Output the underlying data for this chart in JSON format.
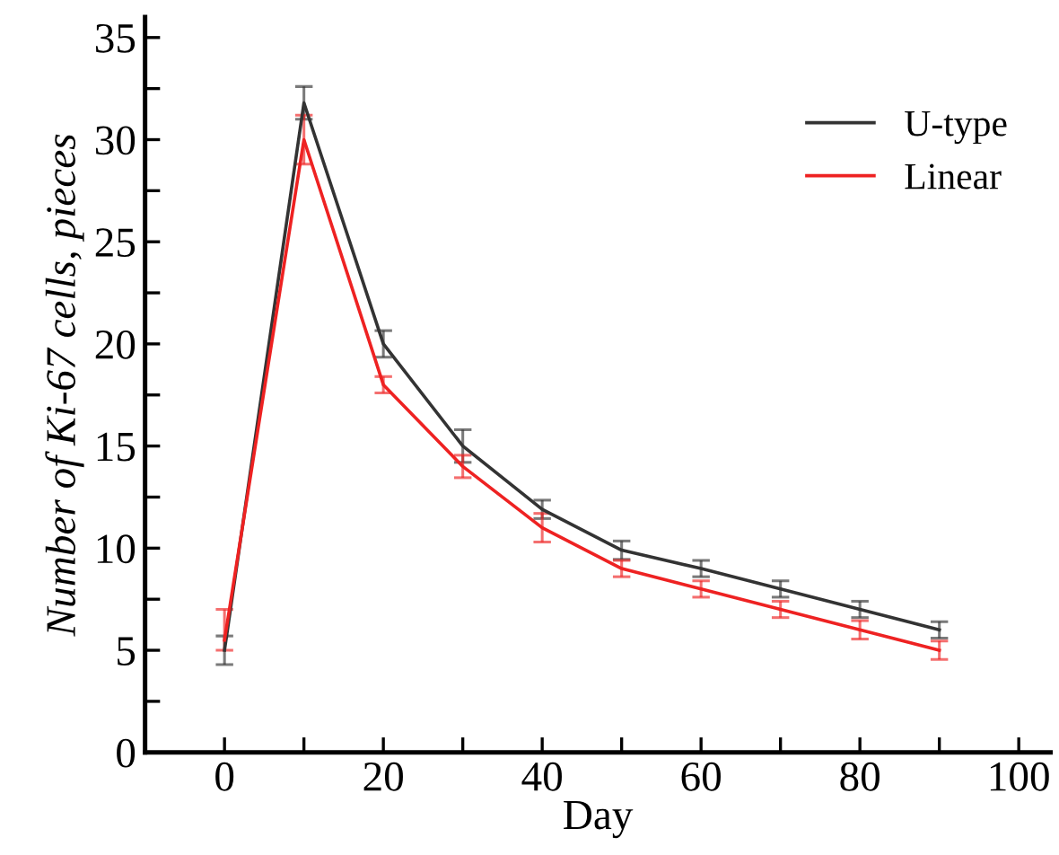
{
  "chart_data": {
    "type": "line",
    "xlabel": "Day",
    "ylabel": "Number of Ki-67 cells, pieces",
    "x": [
      0,
      10,
      20,
      30,
      40,
      50,
      60,
      70,
      80,
      90
    ],
    "series": [
      {
        "name": "U-type",
        "color": "#333333",
        "values": [
          5.0,
          31.8,
          20,
          15.0,
          11.9,
          9.9,
          9.0,
          8.0,
          7.0,
          6.0
        ],
        "errors": [
          0.7,
          0.8,
          0.65,
          0.8,
          0.45,
          0.45,
          0.4,
          0.4,
          0.4,
          0.4
        ]
      },
      {
        "name": "Linear",
        "color": "#ee2222",
        "values": [
          5.5,
          30,
          18,
          14.0,
          11.0,
          9.0,
          8.0,
          7.0,
          6.0,
          5.0
        ],
        "errors": [
          [
            5.0,
            7.0
          ],
          1.2,
          0.4,
          0.55,
          0.7,
          0.4,
          0.4,
          0.4,
          0.45,
          0.45
        ]
      }
    ],
    "xlim": [
      -10,
      104
    ],
    "xticks": [
      0,
      {
        "value": 10,
        "label": null
      },
      20,
      {
        "value": 30,
        "label": null
      },
      40,
      {
        "value": 50,
        "label": null
      },
      60,
      {
        "value": 70,
        "label": null
      },
      80,
      {
        "value": 90,
        "label": null
      },
      100
    ],
    "ylim": [
      0,
      36
    ],
    "yticks": [
      0,
      {
        "value": 2.5,
        "label": null
      },
      5,
      {
        "value": 7.5,
        "label": null
      },
      10,
      {
        "value": 12.5,
        "label": null
      },
      15,
      {
        "value": 17.5,
        "label": null
      },
      20,
      {
        "value": 22.5,
        "label": null
      },
      25,
      {
        "value": 27.5,
        "label": null
      },
      30,
      {
        "value": 32.5,
        "label": null
      },
      35
    ],
    "grid": false,
    "legend": "top right",
    "marker": "none",
    "line_style": "solid"
  }
}
